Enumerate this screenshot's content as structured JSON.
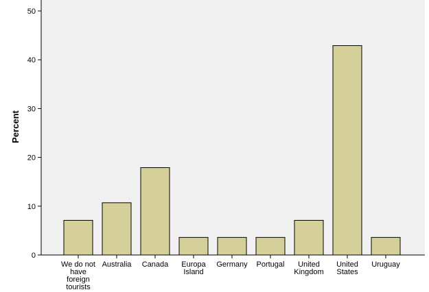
{
  "chart_data": {
    "type": "bar",
    "title": "",
    "xlabel": "",
    "ylabel": "Percent",
    "ylim": [
      0,
      50
    ],
    "yticks": [
      0,
      10,
      20,
      30,
      40,
      50
    ],
    "grid": false,
    "colors": {
      "plot_bg": "#f0f0f0",
      "bar_fill": "#d5d09a",
      "bar_stroke": "#000000"
    },
    "categories": [
      [
        "We do not",
        "have",
        "foreign",
        "tourists"
      ],
      [
        "Australia"
      ],
      [
        "Canada"
      ],
      [
        "Europa",
        "Island"
      ],
      [
        "Germany"
      ],
      [
        "Portugal"
      ],
      [
        "United",
        "Kingdom"
      ],
      [
        "United",
        "States"
      ],
      [
        "Uruguay"
      ]
    ],
    "values": [
      7.1,
      10.7,
      17.9,
      3.6,
      3.6,
      3.6,
      7.1,
      42.9,
      3.6
    ]
  }
}
